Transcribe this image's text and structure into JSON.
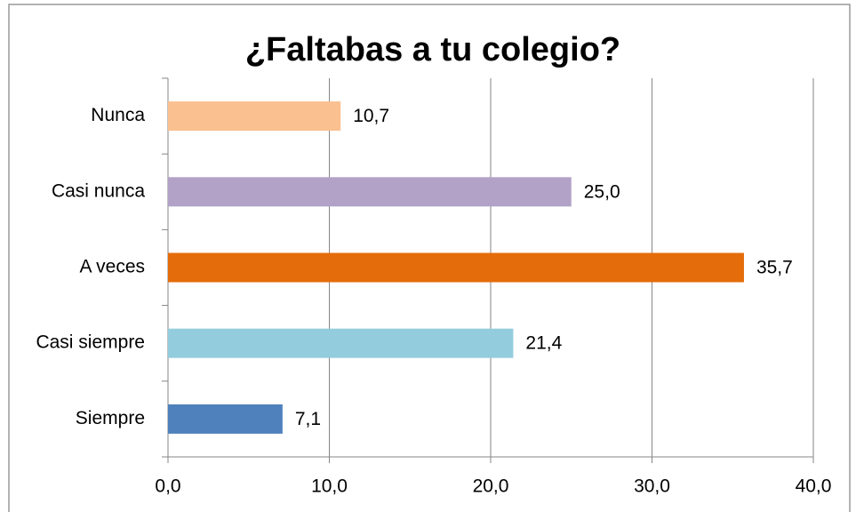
{
  "chart_data": {
    "type": "bar",
    "orientation": "horizontal",
    "title": "¿Faltabas a tu colegio?",
    "categories": [
      "Nunca",
      "Casi nunca",
      "A veces",
      "Casi siempre",
      "Siempre"
    ],
    "values": [
      10.7,
      25.0,
      35.7,
      21.4,
      7.1
    ],
    "value_labels": [
      "10,7",
      "25,0",
      "35,7",
      "21,4",
      "7,1"
    ],
    "colors": [
      "#fac090",
      "#b3a2c7",
      "#e46c0a",
      "#93cddd",
      "#4f81bd"
    ],
    "xlim": [
      0,
      40
    ],
    "xticks": [
      {
        "value": 0,
        "label": "0,0"
      },
      {
        "value": 10,
        "label": "10,0"
      },
      {
        "value": 20,
        "label": "20,0"
      },
      {
        "value": 30,
        "label": "30,0"
      },
      {
        "value": 40,
        "label": "40,0"
      }
    ],
    "grid": true
  }
}
